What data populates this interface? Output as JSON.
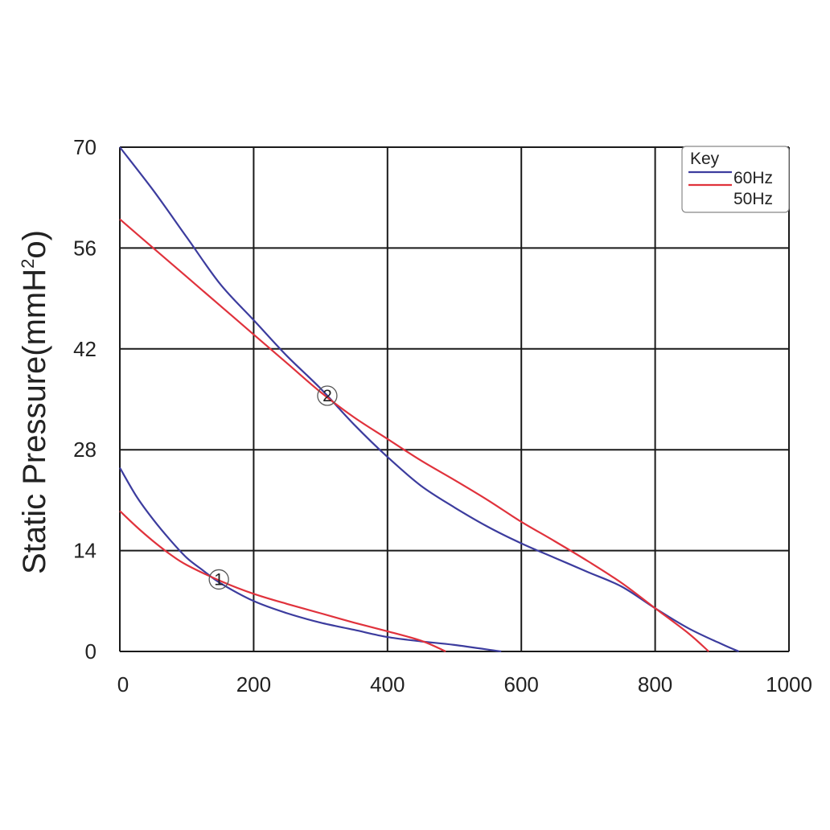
{
  "chart_data": {
    "type": "line",
    "ylabel": "Static Pressure(mmH",
    "ylabel_sup": "2",
    "ylabel_end": "o)",
    "xlim": [
      0,
      1000
    ],
    "ylim": [
      0,
      70
    ],
    "x_ticks": [
      0,
      200,
      400,
      600,
      800,
      1000
    ],
    "x_tick_labels": [
      "0",
      "200",
      "400",
      "600",
      "800",
      "1000"
    ],
    "y_ticks": [
      0,
      14,
      28,
      42,
      56,
      70
    ],
    "y_tick_labels": [
      "0",
      "14",
      "28",
      "42",
      "56",
      "70"
    ],
    "grid": true,
    "legend": {
      "title": "Key",
      "placement": "top-right",
      "entries": [
        {
          "label": "60Hz",
          "color": "#3c3c9e"
        },
        {
          "label": "50Hz",
          "color": "#e0323c"
        }
      ]
    },
    "series": [
      {
        "color": "#3c3c9e",
        "group": "2",
        "points": [
          [
            0,
            70
          ],
          [
            50,
            64
          ],
          [
            100,
            57.5
          ],
          [
            150,
            51
          ],
          [
            200,
            46
          ],
          [
            250,
            41
          ],
          [
            300,
            36.5
          ],
          [
            350,
            31.5
          ],
          [
            400,
            27
          ],
          [
            450,
            23
          ],
          [
            500,
            20
          ],
          [
            550,
            17.3
          ],
          [
            600,
            15
          ],
          [
            650,
            13
          ],
          [
            700,
            11
          ],
          [
            750,
            9
          ],
          [
            800,
            6
          ],
          [
            850,
            3.2
          ],
          [
            900,
            1
          ],
          [
            925,
            0
          ]
        ]
      },
      {
        "color": "#e0323c",
        "group": "2",
        "points": [
          [
            0,
            60
          ],
          [
            50,
            56
          ],
          [
            100,
            52
          ],
          [
            150,
            48
          ],
          [
            200,
            44
          ],
          [
            250,
            40
          ],
          [
            300,
            36
          ],
          [
            350,
            32.5
          ],
          [
            400,
            29.5
          ],
          [
            450,
            26.5
          ],
          [
            500,
            23.8
          ],
          [
            550,
            21
          ],
          [
            600,
            18
          ],
          [
            650,
            15.3
          ],
          [
            700,
            12.5
          ],
          [
            750,
            9.5
          ],
          [
            800,
            6
          ],
          [
            850,
            2.5
          ],
          [
            880,
            0
          ]
        ]
      },
      {
        "color": "#3c3c9e",
        "group": "1",
        "points": [
          [
            0,
            25.5
          ],
          [
            25,
            21.5
          ],
          [
            50,
            18.3
          ],
          [
            75,
            15.5
          ],
          [
            100,
            13
          ],
          [
            125,
            11.2
          ],
          [
            150,
            9.5
          ],
          [
            200,
            7
          ],
          [
            250,
            5.3
          ],
          [
            300,
            4
          ],
          [
            350,
            3
          ],
          [
            400,
            2
          ],
          [
            450,
            1.4
          ],
          [
            500,
            0.9
          ],
          [
            570,
            0
          ]
        ]
      },
      {
        "color": "#e0323c",
        "group": "1",
        "points": [
          [
            0,
            19.5
          ],
          [
            25,
            17.3
          ],
          [
            50,
            15.3
          ],
          [
            75,
            13.5
          ],
          [
            100,
            12
          ],
          [
            150,
            9.8
          ],
          [
            200,
            8
          ],
          [
            250,
            6.6
          ],
          [
            300,
            5.3
          ],
          [
            350,
            4
          ],
          [
            400,
            2.8
          ],
          [
            450,
            1.5
          ],
          [
            487,
            0
          ]
        ]
      }
    ],
    "annotations": [
      {
        "text": "1",
        "x": 148,
        "y": 10
      },
      {
        "text": "2",
        "x": 310,
        "y": 35.5
      }
    ]
  }
}
